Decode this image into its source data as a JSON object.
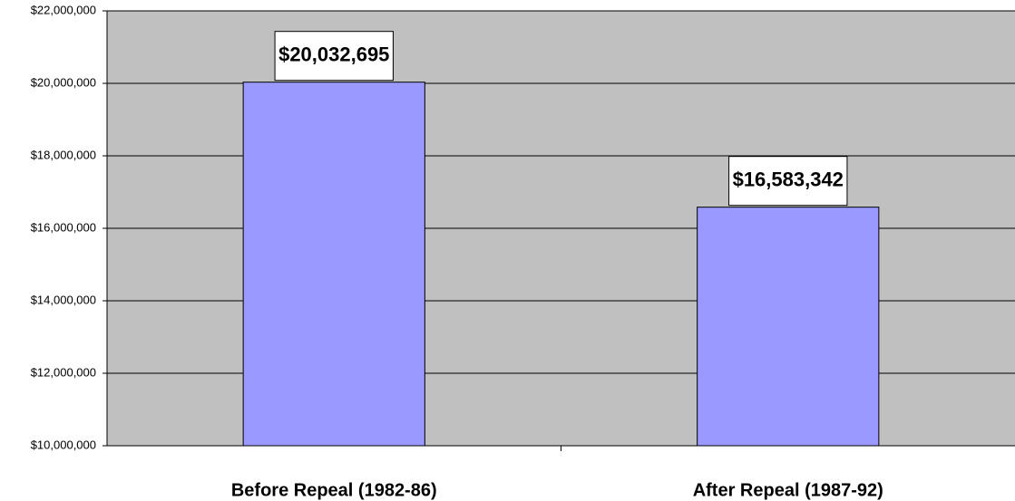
{
  "chart_data": {
    "type": "bar",
    "categories": [
      "Before Repeal (1982-86)",
      "After Repeal (1987-92)"
    ],
    "values": [
      20032695,
      16583342
    ],
    "value_labels": [
      "$20,032,695",
      "$16,583,342"
    ],
    "color": "#9999ff",
    "background": "#c0c0c0",
    "ylim": [
      10000000,
      22000000
    ],
    "yticks": [
      {
        "value": 10000000,
        "label": "$10,000,000"
      },
      {
        "value": 12000000,
        "label": "$12,000,000"
      },
      {
        "value": 14000000,
        "label": "$14,000,000"
      },
      {
        "value": 16000000,
        "label": "$16,000,000"
      },
      {
        "value": 18000000,
        "label": "$18,000,000"
      },
      {
        "value": 20000000,
        "label": "$20,000,000"
      },
      {
        "value": 22000000,
        "label": "$22,000,000"
      }
    ],
    "grid": true
  }
}
